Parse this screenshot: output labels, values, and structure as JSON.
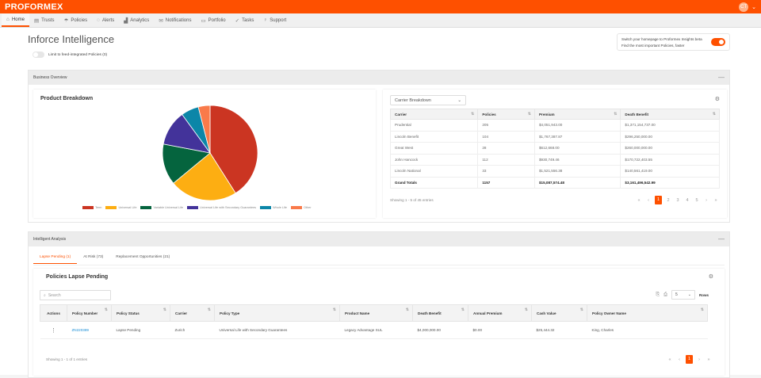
{
  "topbar": {
    "logo": "PROFORMEX",
    "avatar_initials": "CT",
    "avatar_chevron": "⌄"
  },
  "nav": {
    "items": [
      {
        "label": "Home",
        "icon": "⌂",
        "active": true
      },
      {
        "label": "Trusts",
        "icon": "▤"
      },
      {
        "label": "Policies",
        "icon": "☂"
      },
      {
        "label": "Alerts",
        "icon": "◌"
      },
      {
        "label": "Analytics",
        "icon": "▟"
      },
      {
        "label": "Notifications",
        "icon": "✉"
      },
      {
        "label": "Portfolio",
        "icon": "▭"
      },
      {
        "label": "Tasks",
        "icon": "✓"
      },
      {
        "label": "Support",
        "icon": "♀"
      }
    ]
  },
  "page": {
    "title": "Inforce Intelligence",
    "limit_toggle_label": "Limit to feed-integrated Policies (0)"
  },
  "beta": {
    "line1": "Switch your homepage to Proformex Insights beta",
    "line2": "Find the most important Policies, faster"
  },
  "business_overview": {
    "header": "Business Overview",
    "collapse_icon": "—",
    "product_breakdown_title": "Product Breakdown",
    "carrier_select": {
      "value": "Carrier Breakdown",
      "chevron": "⌄"
    },
    "settings_icon": "⚙",
    "carrier_table": {
      "columns": [
        "Carrier",
        "Policies",
        "Premium",
        "Death Benefit"
      ],
      "rows": [
        [
          "Prudential",
          "205",
          "$4,051,943.00",
          "$1,371,154,737.00"
        ],
        [
          "Lincoln Benefit",
          "104",
          "$1,767,387.87",
          "$296,250,000.00"
        ],
        [
          "Great West",
          "28",
          "$612,668.00",
          "$260,000,000.00"
        ],
        [
          "John Hancock",
          "112",
          "$930,749.46",
          "$170,722,403.55"
        ],
        [
          "Lincoln National",
          "33",
          "$1,521,556.38",
          "$140,561,419.00"
        ]
      ],
      "totals": [
        "Grand Totals",
        "1157",
        "$15,087,574.48",
        "$3,161,496,542.99"
      ]
    },
    "showing": "Showing 1 - 5 of 45 entries",
    "pager": {
      "first": "«",
      "prev": "‹",
      "pages": [
        "1",
        "2",
        "3",
        "4",
        "5"
      ],
      "next": "›",
      "last": "»",
      "active": "1"
    }
  },
  "chart_data": {
    "type": "pie",
    "title": "Product Breakdown",
    "categories": [
      "Term",
      "Universal Life",
      "Variable Universal Life",
      "Universal Life with Secondary Guarantees",
      "Whole Life",
      "Other"
    ],
    "values": [
      41,
      23,
      14,
      12,
      6,
      4
    ],
    "colors": [
      "#cb3522",
      "#fdae12",
      "#05643e",
      "#43339a",
      "#0c86a8",
      "#f97a4a"
    ],
    "legend_position": "bottom"
  },
  "intelligent_analysis": {
    "header": "Intelligent Analysis",
    "collapse_icon": "—",
    "tabs": [
      {
        "label": "Lapse Pending (1)",
        "active": true
      },
      {
        "label": "At Risk (73)"
      },
      {
        "label": "Replacement Opportunities (21)"
      }
    ],
    "section_title": "Policies Lapse Pending",
    "settings_icon": "⚙",
    "search_placeholder": "Search",
    "rows_select": {
      "value": "5",
      "label": "Rows"
    },
    "table": {
      "columns": [
        "Actions",
        "Policy Number",
        "Policy Status",
        "Carrier",
        "Policy Type",
        "Product Name",
        "Death Benefit",
        "Annual Premium",
        "Cash Value",
        "Policy Owner Name"
      ],
      "rows": [
        [
          "⋮",
          "ZN220389",
          "Lapse Pending",
          "Zurich",
          "Universal Life with Secondary Guarantees",
          "Legacy Advantage SUL",
          "$4,000,000.00",
          "$0.00",
          "$25,444.32",
          "King, Charles"
        ]
      ]
    },
    "showing": "Showing 1 - 1 of 1 entries",
    "pager": {
      "first": "«",
      "prev": "‹",
      "pages": [
        "1"
      ],
      "next": "›",
      "last": "»"
    }
  }
}
